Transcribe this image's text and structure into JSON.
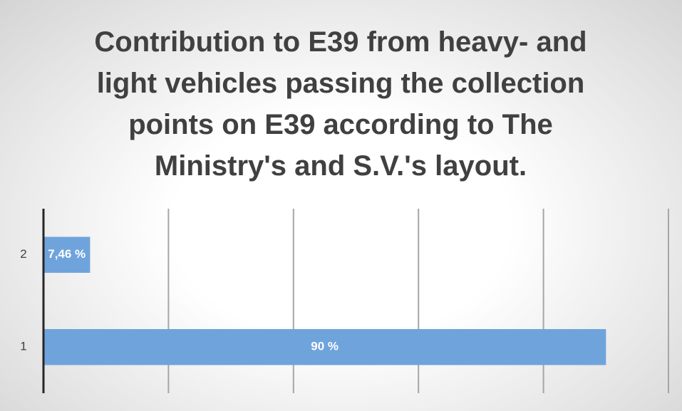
{
  "chart_data": {
    "type": "barh",
    "title": "Contribution to E39 from heavy- and light vehicles passing the collection points on E39 according to The Ministry's and S.V.'s layout.",
    "categories": [
      "1",
      "2"
    ],
    "values": [
      90,
      7.46
    ],
    "value_labels": [
      "90 %",
      "7,46 %"
    ],
    "color": "#6fa3dc",
    "xlim": [
      0,
      100
    ],
    "xticks": [
      0,
      20,
      40,
      60,
      80,
      100
    ],
    "grid": true
  }
}
